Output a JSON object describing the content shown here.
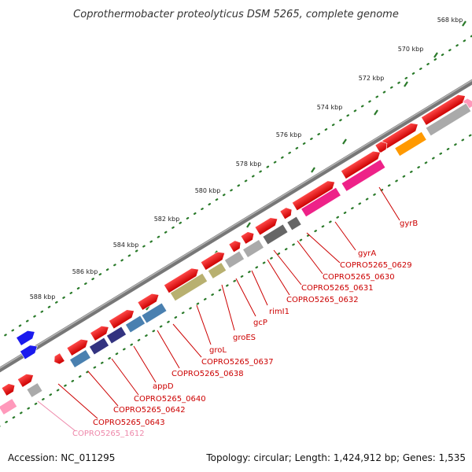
{
  "title": "Coprothermobacter proteolyticus DSM 5265, complete genome",
  "accession": "Accession: NC_011295",
  "summary": "Topology: circular; Length: 1,424,912 bp; Genes: 1,535",
  "ticks": [
    "568 kbp",
    "570 kbp",
    "572 kbp",
    "574 kbp",
    "576 kbp",
    "578 kbp",
    "580 kbp",
    "582 kbp",
    "584 kbp",
    "586 kbp",
    "588 kbp"
  ],
  "gene_labels": [
    "gyrB",
    "gyrA",
    "COPRO5265_0629",
    "COPRO5265_0630",
    "COPRO5265_0631",
    "COPRO5265_0632",
    "rimI1",
    "gcP",
    "groES",
    "groL",
    "COPRO5265_0637",
    "COPRO5265_0638",
    "appD",
    "COPRO5265_0640",
    "COPRO5265_0642",
    "COPRO5265_0643",
    "COPRO5265_1612"
  ],
  "colors": {
    "cds": "#ee0000",
    "backbone": "#888888",
    "tick": "#2a7a2a",
    "label": "#cc0000",
    "gyr": "#ee2288",
    "olive": "#b8b070",
    "steel": "#4a80b0",
    "navy": "#333380",
    "gray": "#aaaaaa",
    "darkgray": "#666666",
    "orange": "#ff9900",
    "blue": "#1a1aee",
    "pink": "#ff99bb"
  }
}
